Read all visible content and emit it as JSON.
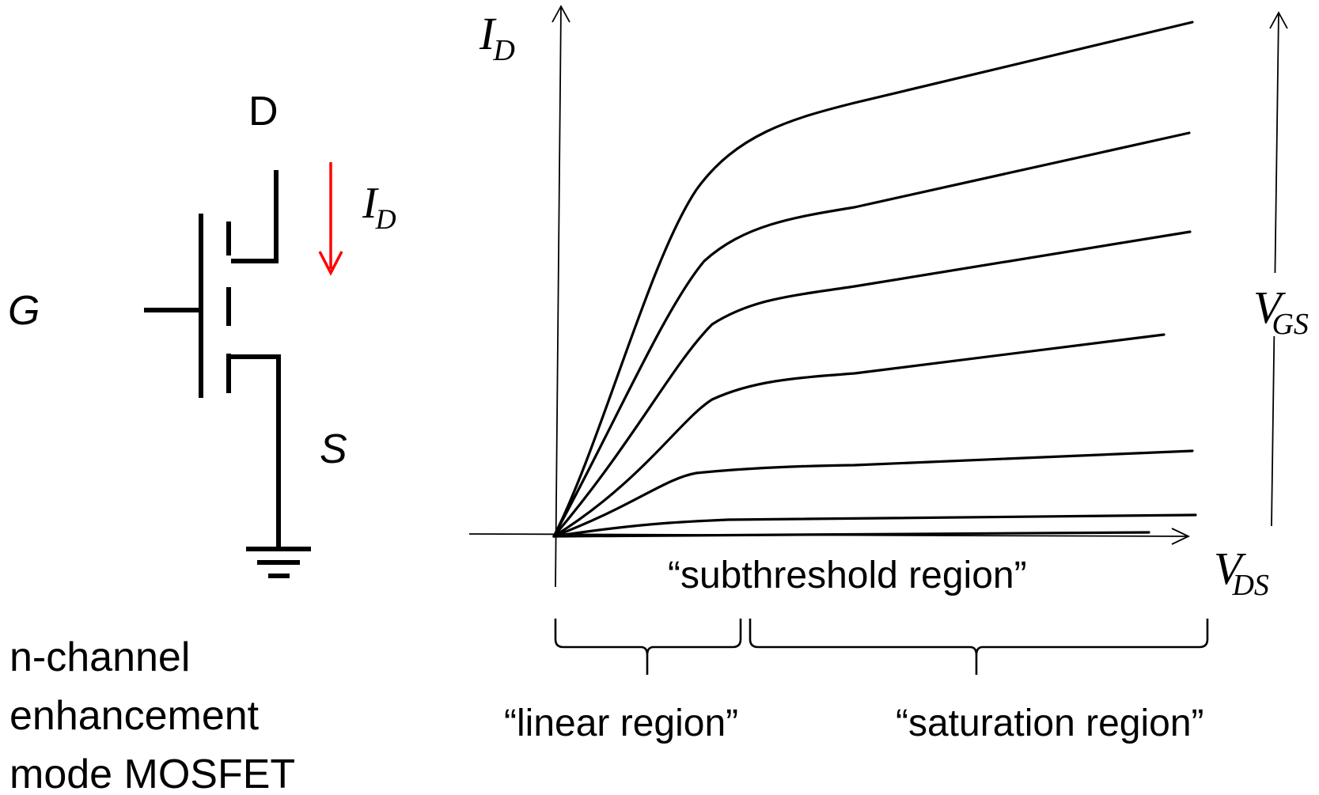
{
  "symbol": {
    "drain_label": "D",
    "gate_label": "G",
    "source_label": "S",
    "current_label": "I",
    "current_sub": "D",
    "current_arrow_color": "#ff0000",
    "caption_lines": [
      "n-channel",
      "enhancement",
      "mode MOSFET"
    ]
  },
  "graph": {
    "y_axis_label": "I",
    "y_axis_sub": "D",
    "x_axis_label": "V",
    "x_axis_sub": "DS",
    "vgs_label": "V",
    "vgs_sub": "GS",
    "subthreshold_label": "“subthreshold region”",
    "linear_label": "“linear region”",
    "saturation_label": "“saturation region”",
    "curve_count": 7
  }
}
